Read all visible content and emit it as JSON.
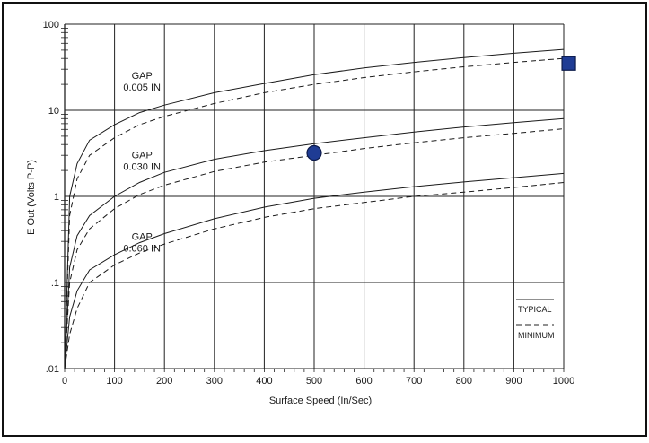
{
  "chart_data": {
    "type": "line",
    "title": "",
    "xlabel": "Surface Speed (In/Sec)",
    "ylabel": "E Out (Volts P-P)",
    "xlim": [
      0,
      1000
    ],
    "ylim": [
      0.01,
      100
    ],
    "yscale": "log",
    "grid": true,
    "x_ticks": [
      "0",
      "100",
      "200",
      "300",
      "400",
      "500",
      "600",
      "700",
      "800",
      "900",
      "1000"
    ],
    "y_ticks": [
      {
        "value": 100,
        "label": "100"
      },
      {
        "value": 10,
        "label": "10"
      },
      {
        "value": 1,
        "label": "1"
      },
      {
        "value": 0.1,
        "label": ".1"
      },
      {
        "value": 0.01,
        "label": ".01"
      }
    ],
    "legend_position": "bottom-right",
    "legend": [
      {
        "label": "TYPICAL",
        "style": "solid"
      },
      {
        "label": "MINIMUM",
        "style": "dashed"
      }
    ],
    "gap_labels": [
      {
        "line1": "GAP",
        "line2": "0.005 IN",
        "x": 155,
        "y": 20
      },
      {
        "line1": "GAP",
        "line2": "0.030 IN",
        "x": 155,
        "y": 2.4
      },
      {
        "line1": "GAP",
        "line2": "0.060 IN",
        "x": 155,
        "y": 0.27
      }
    ],
    "series": [
      {
        "gap": "0.005 IN",
        "style": "solid",
        "x": [
          0,
          10,
          25,
          50,
          100,
          150,
          200,
          300,
          400,
          500,
          600,
          700,
          800,
          900,
          1000
        ],
        "y": [
          0.01,
          1.0,
          2.4,
          4.5,
          6.8,
          9.4,
          11.5,
          16,
          20.5,
          26,
          31,
          36,
          41,
          46,
          51
        ]
      },
      {
        "gap": "0.005 IN",
        "style": "dashed",
        "x": [
          0,
          10,
          25,
          50,
          100,
          150,
          200,
          300,
          400,
          500,
          600,
          700,
          800,
          900,
          1000
        ],
        "y": [
          0.01,
          0.6,
          1.6,
          3.0,
          4.8,
          6.8,
          8.5,
          12,
          16,
          20,
          24,
          28,
          32,
          36,
          40
        ]
      },
      {
        "gap": "0.030 IN",
        "style": "solid",
        "x": [
          0,
          10,
          25,
          50,
          100,
          150,
          200,
          300,
          400,
          500,
          600,
          700,
          800,
          900,
          1000
        ],
        "y": [
          0.01,
          0.15,
          0.35,
          0.6,
          1.0,
          1.45,
          1.9,
          2.7,
          3.4,
          4.1,
          4.8,
          5.6,
          6.4,
          7.2,
          8.0
        ]
      },
      {
        "gap": "0.030 IN",
        "style": "dashed",
        "x": [
          0,
          10,
          25,
          50,
          100,
          150,
          200,
          300,
          400,
          500,
          600,
          700,
          800,
          900,
          1000
        ],
        "y": [
          0.01,
          0.1,
          0.24,
          0.42,
          0.72,
          1.05,
          1.35,
          1.95,
          2.5,
          3.0,
          3.6,
          4.2,
          4.8,
          5.4,
          6.1
        ]
      },
      {
        "gap": "0.060 IN",
        "style": "solid",
        "x": [
          0,
          10,
          25,
          50,
          100,
          150,
          200,
          300,
          400,
          500,
          600,
          700,
          800,
          900,
          1000
        ],
        "y": [
          0.01,
          0.04,
          0.08,
          0.14,
          0.21,
          0.29,
          0.37,
          0.55,
          0.75,
          0.95,
          1.12,
          1.3,
          1.47,
          1.65,
          1.85
        ]
      },
      {
        "gap": "0.060 IN",
        "style": "dashed",
        "x": [
          0,
          10,
          25,
          50,
          100,
          150,
          200,
          300,
          400,
          500,
          600,
          700,
          800,
          900,
          1000
        ],
        "y": [
          0.01,
          0.025,
          0.05,
          0.1,
          0.16,
          0.22,
          0.28,
          0.42,
          0.57,
          0.72,
          0.85,
          1.0,
          1.12,
          1.27,
          1.45
        ]
      }
    ],
    "markers": [
      {
        "shape": "circle",
        "color": "#1f3c94",
        "x": 500,
        "y": 3.2
      },
      {
        "shape": "square",
        "color": "#1f3c94",
        "x": 1010,
        "y": 35
      }
    ]
  }
}
